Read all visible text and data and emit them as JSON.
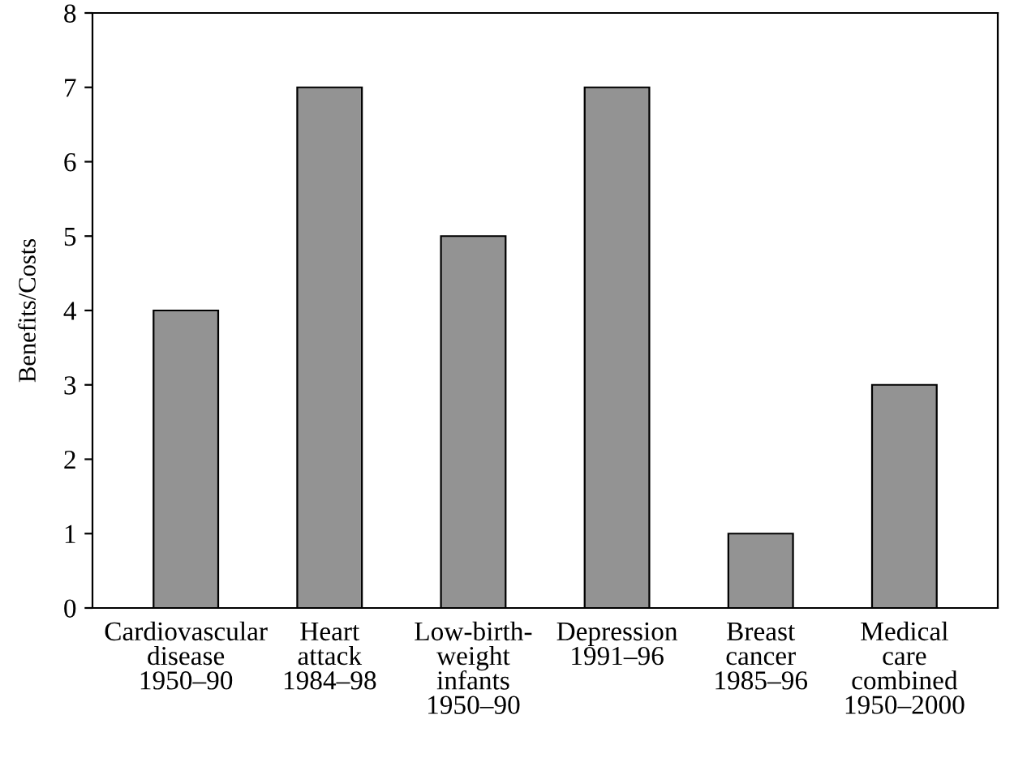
{
  "chart_data": {
    "type": "bar",
    "ylabel": "Benefits/Costs",
    "categories": [
      "Cardiovascular\ndisease\n1950–90",
      "Heart\nattack\n1984–98",
      "Low-birth-\nweight\ninfants\n1950–90",
      "Depression\n1991–96",
      "Breast\ncancer\n1985–96",
      "Medical\ncare\ncombined\n1950–2000"
    ],
    "values": [
      4,
      7,
      5,
      7,
      1,
      3
    ],
    "color": "#939393",
    "ylim": [
      0,
      8
    ],
    "yticks": [
      0,
      1,
      2,
      3,
      4,
      5,
      6,
      7,
      8
    ],
    "grid": false
  }
}
